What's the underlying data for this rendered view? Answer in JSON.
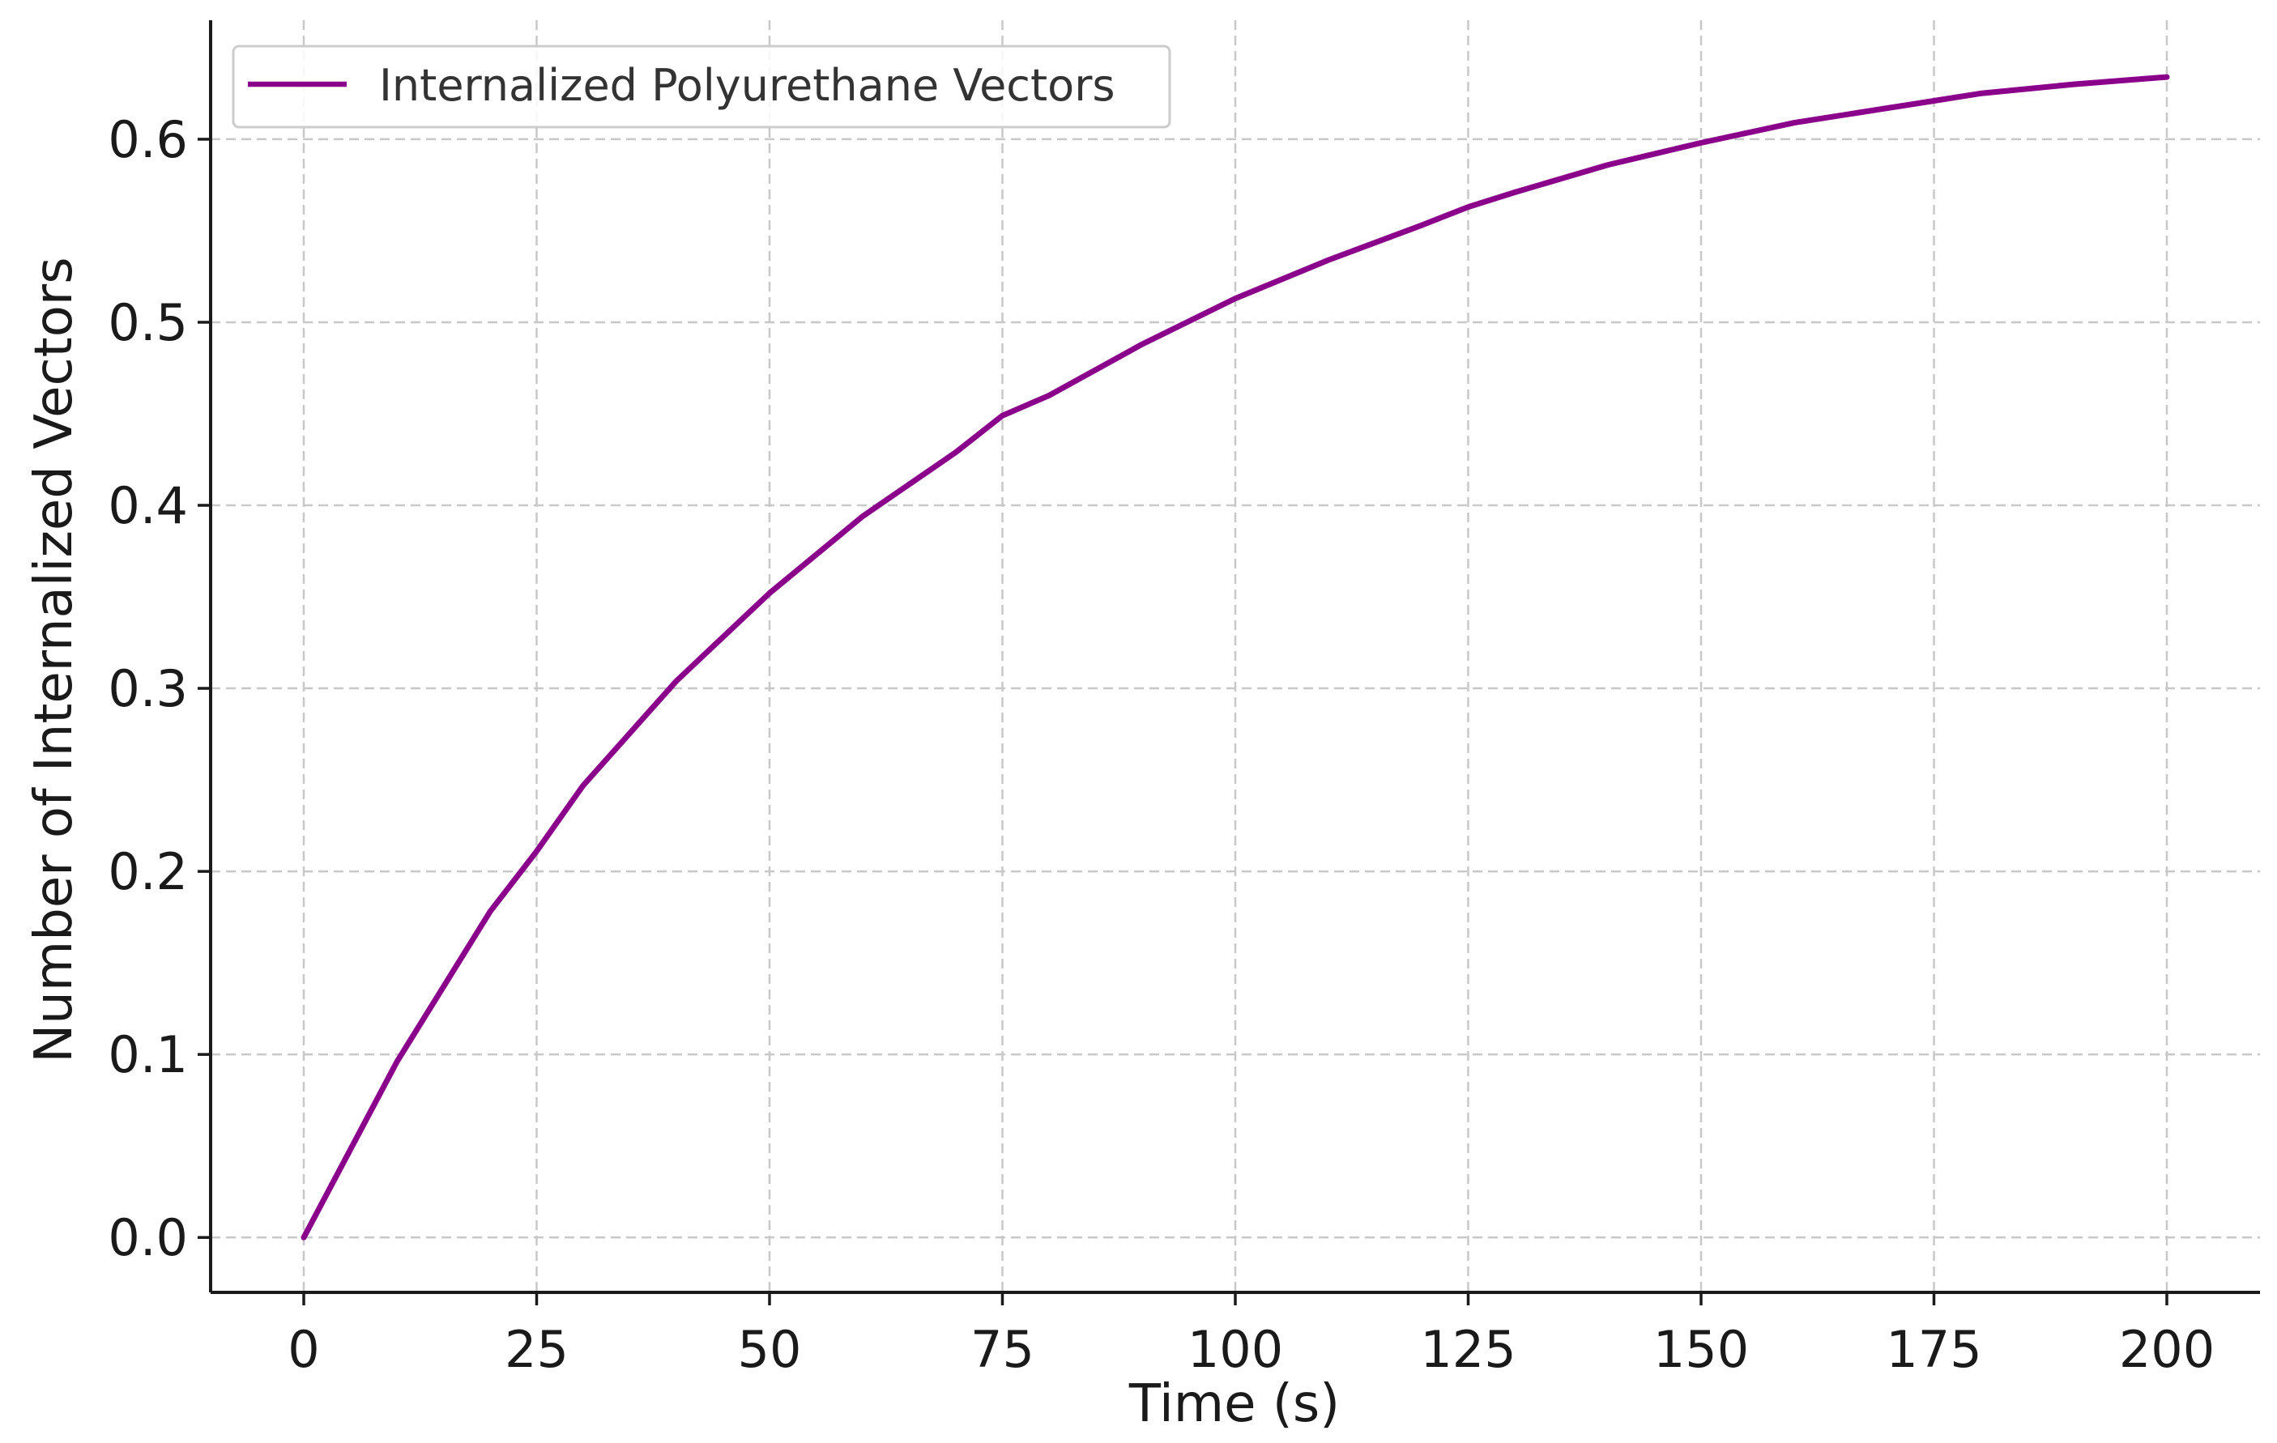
{
  "chart_data": {
    "type": "line",
    "title": "",
    "xlabel": "Time (s)",
    "ylabel": "Number of Internalized Vectors",
    "xlim": [
      -10,
      210
    ],
    "ylim": [
      -0.03,
      0.665
    ],
    "xticks": [
      0,
      25,
      50,
      75,
      100,
      125,
      150,
      175,
      200
    ],
    "xtick_labels": [
      "0",
      "25",
      "50",
      "75",
      "100",
      "125",
      "150",
      "175",
      "200"
    ],
    "yticks": [
      0.0,
      0.1,
      0.2,
      0.3,
      0.4,
      0.5,
      0.6
    ],
    "ytick_labels": [
      "0.0",
      "0.1",
      "0.2",
      "0.3",
      "0.4",
      "0.5",
      "0.6"
    ],
    "grid": true,
    "legend_position": "top-left",
    "series": [
      {
        "name": "Internalized Polyurethane Vectors",
        "color": "#8b008b",
        "x": [
          0,
          10,
          20,
          25,
          30,
          40,
          50,
          60,
          70,
          75,
          80,
          90,
          100,
          110,
          120,
          125,
          130,
          140,
          150,
          160,
          170,
          175,
          180,
          190,
          200
        ],
        "y": [
          0.0,
          0.096,
          0.178,
          0.211,
          0.247,
          0.304,
          0.352,
          0.394,
          0.429,
          0.449,
          0.46,
          0.488,
          0.513,
          0.534,
          0.553,
          0.563,
          0.571,
          0.586,
          0.598,
          0.609,
          0.617,
          0.621,
          0.625,
          0.63,
          0.634
        ]
      }
    ]
  }
}
